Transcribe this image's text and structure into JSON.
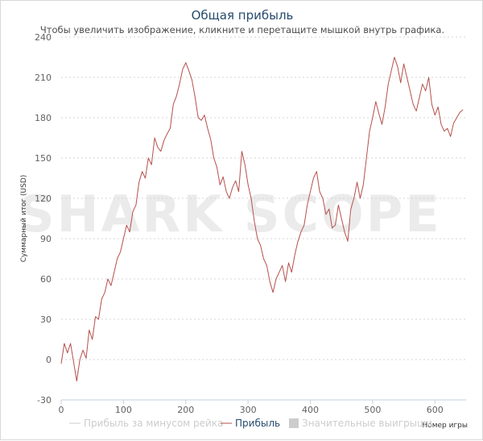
{
  "chart_data": {
    "type": "line",
    "title": "Общая прибыль",
    "subtitle": "Чтобы увеличить изображение, кликните и перетащите мышкой внутрь графика.",
    "ylabel": "Суммарный итог (USD)",
    "xlabel": "Номер игры",
    "xlim": [
      0,
      650
    ],
    "ylim": [
      -30,
      240
    ],
    "x_ticks": [
      0,
      100,
      200,
      300,
      400,
      500,
      600
    ],
    "y_ticks": [
      -30,
      0,
      30,
      60,
      90,
      120,
      150,
      180,
      210,
      240
    ],
    "grid": true,
    "legend_position": "bottom",
    "watermark": "SHARK SCOPE",
    "colors": {
      "profit": "#b5504b",
      "rake_line": "#cccccc",
      "significant": "#cccccc"
    },
    "legend": [
      {
        "name": "Прибыль за минусом рейка",
        "color": "#cccccc",
        "kind": "line",
        "visible": false
      },
      {
        "name": "Прибыль",
        "color": "#b5504b",
        "kind": "line",
        "visible": true
      },
      {
        "name": "Значительные выигрыши",
        "color": "#cccccc",
        "kind": "box",
        "visible": false
      }
    ],
    "series": [
      {
        "name": "Прибыль",
        "x": [
          0,
          5,
          10,
          15,
          20,
          25,
          30,
          35,
          40,
          45,
          50,
          55,
          60,
          65,
          70,
          75,
          80,
          85,
          90,
          95,
          100,
          105,
          110,
          115,
          120,
          125,
          130,
          135,
          140,
          145,
          150,
          155,
          160,
          165,
          170,
          175,
          180,
          185,
          190,
          195,
          200,
          205,
          210,
          215,
          220,
          225,
          230,
          235,
          240,
          245,
          250,
          255,
          260,
          265,
          270,
          275,
          280,
          285,
          290,
          295,
          300,
          305,
          310,
          315,
          320,
          325,
          330,
          335,
          340,
          345,
          350,
          355,
          360,
          365,
          370,
          375,
          380,
          385,
          390,
          395,
          400,
          405,
          410,
          415,
          420,
          425,
          430,
          435,
          440,
          445,
          450,
          455,
          460,
          465,
          470,
          475,
          480,
          485,
          490,
          495,
          500,
          505,
          510,
          515,
          520,
          525,
          530,
          535,
          540,
          545,
          550,
          555,
          560,
          565,
          570,
          575,
          580,
          585,
          590,
          595,
          600,
          605,
          610,
          615,
          620,
          625,
          630,
          635,
          640,
          645
        ],
        "y": [
          -3,
          12,
          5,
          12,
          -2,
          -16,
          0,
          7,
          1,
          22,
          15,
          32,
          30,
          45,
          50,
          60,
          55,
          65,
          75,
          80,
          90,
          100,
          95,
          110,
          115,
          132,
          140,
          135,
          150,
          145,
          165,
          158,
          155,
          163,
          168,
          172,
          190,
          196,
          205,
          216,
          221,
          215,
          208,
          195,
          180,
          178,
          182,
          172,
          164,
          150,
          143,
          130,
          136,
          125,
          120,
          128,
          133,
          125,
          155,
          145,
          130,
          120,
          103,
          90,
          85,
          75,
          70,
          58,
          50,
          60,
          65,
          70,
          58,
          72,
          65,
          78,
          88,
          95,
          100,
          115,
          125,
          135,
          140,
          125,
          120,
          108,
          112,
          98,
          100,
          115,
          105,
          95,
          88,
          112,
          120,
          132,
          120,
          130,
          150,
          170,
          180,
          192,
          183,
          175,
          188,
          205,
          215,
          225,
          218,
          206,
          220,
          210,
          200,
          190,
          185,
          195,
          205,
          200,
          210,
          190,
          182,
          188,
          175,
          170,
          172,
          166,
          176,
          180,
          184,
          186
        ]
      }
    ]
  }
}
